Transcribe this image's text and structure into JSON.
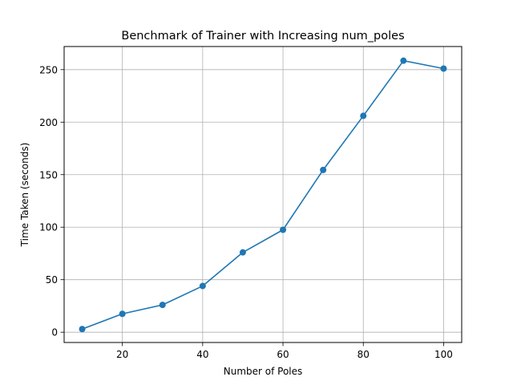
{
  "chart_data": {
    "type": "line",
    "title": "Benchmark of Trainer with Increasing num_poles",
    "xlabel": "Number of Poles",
    "ylabel": "Time Taken (seconds)",
    "xlim": [
      5.5,
      104.5
    ],
    "ylim": [
      -9.8,
      272
    ],
    "xticks": [
      20,
      40,
      60,
      80,
      100
    ],
    "yticks": [
      0,
      50,
      100,
      150,
      200,
      250
    ],
    "grid": true,
    "series": [
      {
        "color": "#1f77b4",
        "marker": "circle",
        "x": [
          10,
          20,
          30,
          40,
          50,
          60,
          70,
          80,
          90,
          100
        ],
        "y": [
          3,
          17.5,
          26,
          44,
          76,
          97.5,
          154.5,
          206,
          258.5,
          251
        ]
      }
    ]
  }
}
